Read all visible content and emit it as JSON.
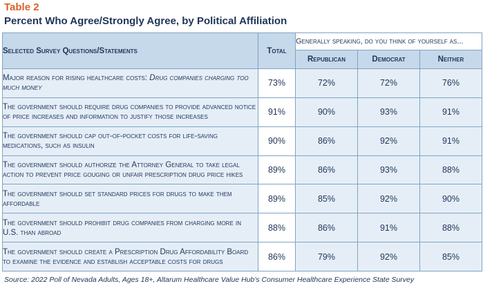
{
  "table_label": "Table 2",
  "subtitle": "Percent Who Agree/Strongly Agree, by Political Affiliation",
  "headers": {
    "question": "Selected Survey Questions/Statements",
    "total": "Total",
    "group": "Generally speaking, do you think of yourself as...",
    "republican": "Republican",
    "democrat": "Democrat",
    "neither": "Neither"
  },
  "rows": [
    {
      "q_pre": "Major reason for rising healthcare costs: ",
      "q_emph": "Drug companies charging too much money",
      "total": "73%",
      "republican": "72%",
      "democrat": "72%",
      "neither": "76%"
    },
    {
      "q_pre": "The government should require drug companies to provide advanced notice of price increases and information to justify those increases",
      "q_emph": "",
      "total": "91%",
      "republican": "90%",
      "democrat": "93%",
      "neither": "91%"
    },
    {
      "q_pre": "The government should cap out-of-pocket costs for life-saving medications, such as insulin",
      "q_emph": "",
      "total": "90%",
      "republican": "86%",
      "democrat": "92%",
      "neither": "91%"
    },
    {
      "q_pre": "The government should authorize the Attorney General to take legal action to prevent price gouging or unfair prescription drug price hikes",
      "q_emph": "",
      "total": "89%",
      "republican": "86%",
      "democrat": "93%",
      "neither": "88%"
    },
    {
      "q_pre": "The government should set standard prices for drugs to make them affordable",
      "q_emph": "",
      "total": "89%",
      "republican": "85%",
      "democrat": "92%",
      "neither": "90%"
    },
    {
      "q_pre": "The government should prohibit drug companies from charging more in U.S. than abroad",
      "q_emph": "",
      "total": "88%",
      "republican": "86%",
      "democrat": "91%",
      "neither": "88%"
    },
    {
      "q_pre": "The government should create a Prescription Drug Affordability Board to examine the evidence and establish acceptable costs for drugs",
      "q_emph": "",
      "total": "86%",
      "republican": "79%",
      "democrat": "92%",
      "neither": "85%"
    }
  ],
  "source": "Source: 2022 Poll of Nevada Adults, Ages 18+, Altarum Healthcare Value Hub's Consumer Healthcare Experience State Survey"
}
